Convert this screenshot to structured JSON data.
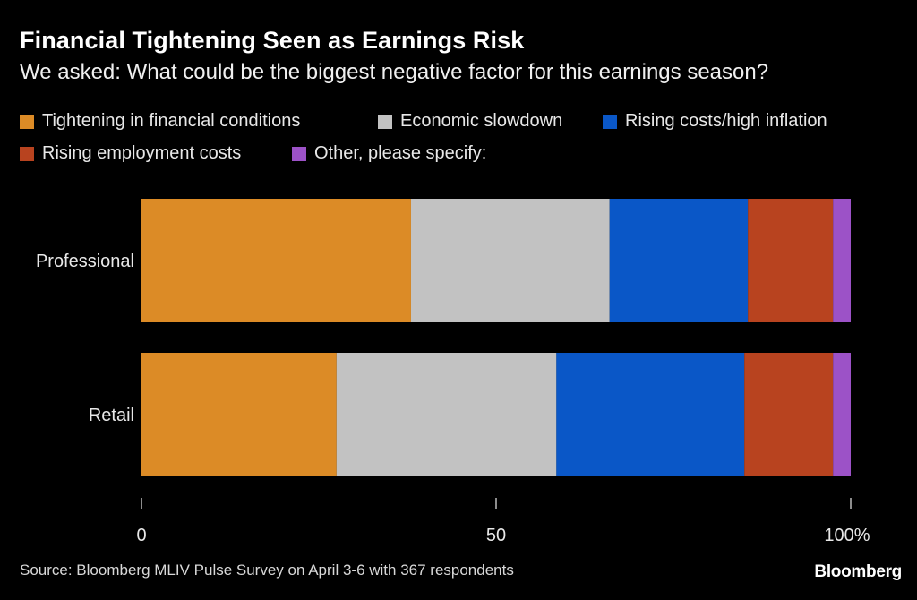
{
  "chart_data": {
    "type": "bar",
    "orientation": "horizontal",
    "stacked": true,
    "title": "Financial Tightening Seen as Earnings Risk",
    "subtitle": "We asked: What could be the biggest negative factor for this earnings season?",
    "categories": [
      "Professional",
      "Retail"
    ],
    "series": [
      {
        "name": "Tightening in financial conditions",
        "color": "#dc8b26",
        "values": [
          38,
          27.5
        ]
      },
      {
        "name": "Economic slowdown",
        "color": "#c2c2c2",
        "values": [
          28,
          31
        ]
      },
      {
        "name": "Rising costs/high inflation",
        "color": "#0a57c7",
        "values": [
          19.5,
          26.5
        ]
      },
      {
        "name": "Rising employment costs",
        "color": "#b8431f",
        "values": [
          12,
          12.5
        ]
      },
      {
        "name": "Other, please specify:",
        "color": "#9c52c7",
        "values": [
          2.5,
          2.5
        ]
      }
    ],
    "xlim": [
      0,
      100
    ],
    "xticks": [
      {
        "value": 0,
        "label": "0"
      },
      {
        "value": 50,
        "label": "50"
      },
      {
        "value": 100,
        "label": "100%"
      }
    ],
    "legend_position": "top",
    "grid": false,
    "source": "Source: Bloomberg MLIV Pulse Survey on April 3-6 with 367 respondents",
    "brand": "Bloomberg"
  }
}
